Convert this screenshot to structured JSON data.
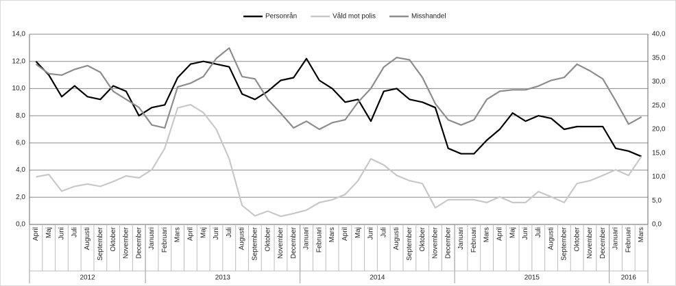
{
  "chart_data": {
    "type": "line",
    "categories": [
      "April",
      "Maj",
      "Juni",
      "Juli",
      "Augusti",
      "September",
      "Oktober",
      "November",
      "December",
      "Januari",
      "Februari",
      "Mars",
      "April",
      "Maj",
      "Juni",
      "Juli",
      "Augusti",
      "September",
      "Oktober",
      "November",
      "December",
      "Januari",
      "Februari",
      "Mars",
      "April",
      "Maj",
      "Juni",
      "Juli",
      "Augusti",
      "September",
      "Oktober",
      "November",
      "December",
      "Januari",
      "Februari",
      "Mars",
      "April",
      "Maj",
      "Juni",
      "Juli",
      "Augusti",
      "September",
      "Oktober",
      "November",
      "December",
      "Januari",
      "Februari",
      "Mars"
    ],
    "groups": [
      "2012",
      "2013",
      "2014",
      "2015",
      "2016"
    ],
    "series": [
      {
        "name": "Personrån",
        "color": "#000000",
        "axis": "y",
        "values": [
          12.0,
          11.0,
          9.4,
          10.2,
          9.4,
          9.2,
          10.2,
          9.8,
          8.0,
          8.6,
          8.8,
          10.8,
          11.8,
          12.0,
          11.8,
          11.6,
          9.6,
          9.2,
          9.8,
          10.6,
          10.8,
          12.2,
          10.6,
          10.0,
          9.0,
          9.2,
          7.6,
          9.8,
          10.0,
          9.2,
          9.0,
          8.6,
          5.6,
          5.2,
          5.2,
          6.2,
          7.0,
          8.2,
          7.6,
          8.0,
          7.8,
          7.0,
          7.2,
          7.2,
          7.2,
          5.6,
          5.4,
          5.0
        ]
      },
      {
        "name": "Våld mot polis",
        "color": "#c8c8c8",
        "axis": "y2",
        "values": [
          10.0,
          10.5,
          7.0,
          8.0,
          8.5,
          8.0,
          9.0,
          10.2,
          9.8,
          11.5,
          16.0,
          24.5,
          25.2,
          23.5,
          20.0,
          13.8,
          4.0,
          1.8,
          2.8,
          1.7,
          2.3,
          3.0,
          4.6,
          5.2,
          6.3,
          9.2,
          13.8,
          12.5,
          10.3,
          9.2,
          8.6,
          3.5,
          5.2,
          5.2,
          5.2,
          4.6,
          5.8,
          4.6,
          4.6,
          6.9,
          5.8,
          4.6,
          8.6,
          9.2,
          10.3,
          11.5,
          10.3,
          14.3
        ]
      },
      {
        "name": "Misshandel",
        "color": "#8c8c8c",
        "axis": "y2",
        "values": [
          33.7,
          31.7,
          31.4,
          32.6,
          33.4,
          32.0,
          28.0,
          26.3,
          24.6,
          20.9,
          20.3,
          28.9,
          29.7,
          31.1,
          34.9,
          37.1,
          31.1,
          30.6,
          26.3,
          23.4,
          20.3,
          21.7,
          20.0,
          21.4,
          22.0,
          25.7,
          28.6,
          33.1,
          35.1,
          34.6,
          30.9,
          25.4,
          22.0,
          20.9,
          22.0,
          26.3,
          28.0,
          28.3,
          28.3,
          29.1,
          30.3,
          30.9,
          33.7,
          32.3,
          30.6,
          26.0,
          21.1,
          22.6
        ]
      }
    ],
    "ylim": [
      0,
      14
    ],
    "yticks": [
      {
        "value": 0,
        "label": "0,0"
      },
      {
        "value": 2,
        "label": "2,0"
      },
      {
        "value": 4,
        "label": "4,0"
      },
      {
        "value": 6,
        "label": "6,0"
      },
      {
        "value": 8,
        "label": "8,0"
      },
      {
        "value": 10,
        "label": "10,0"
      },
      {
        "value": 12,
        "label": "12,0"
      },
      {
        "value": 14,
        "label": "14,0"
      }
    ],
    "y2lim": [
      0,
      40
    ],
    "y2ticks": [
      {
        "value": 0,
        "label": "0,0"
      },
      {
        "value": 5,
        "label": "5,0"
      },
      {
        "value": 10,
        "label": "10,0"
      },
      {
        "value": 15,
        "label": "15,0"
      },
      {
        "value": 20,
        "label": "20,0"
      },
      {
        "value": 25,
        "label": "25,0"
      },
      {
        "value": 30,
        "label": "30,0"
      },
      {
        "value": 35,
        "label": "35,0"
      },
      {
        "value": 40,
        "label": "40,0"
      }
    ],
    "grid": true,
    "legend": "top"
  }
}
